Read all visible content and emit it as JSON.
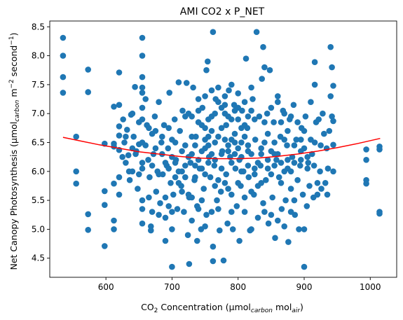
{
  "chart_data": {
    "type": "scatter",
    "title": "AMI CO2 x P_NET",
    "xlabel": {
      "main": "CO",
      "sub2": "2",
      "rest": " Concentration (µmol",
      "sub_carbon": "carbon",
      "mid": " mol",
      "sub_air": "air",
      "end": ")"
    },
    "ylabel": {
      "main": "Net Canopy Photosynthesis (µmol",
      "sub_carbon": "carbon",
      "mid": " m",
      "sup1": "−2",
      "mid2": " second",
      "sup2": "−1",
      "end": ")"
    },
    "xlim": [
      515,
      1040
    ],
    "ylim": [
      4.17,
      8.6
    ],
    "xticks": [
      600,
      700,
      800,
      900,
      1000
    ],
    "yticks": [
      4.5,
      5.0,
      5.5,
      6.0,
      6.5,
      7.0,
      7.5,
      8.0,
      8.5
    ],
    "colors": {
      "points": "#1f77b4",
      "fit": "#ff0000"
    },
    "fit_line": {
      "name": "",
      "x": [
        535,
        560,
        590,
        620,
        650,
        680,
        710,
        740,
        770,
        800,
        830,
        860,
        890,
        920,
        950,
        980,
        1015
      ],
      "y": [
        6.59,
        6.53,
        6.46,
        6.4,
        6.34,
        6.3,
        6.26,
        6.23,
        6.22,
        6.22,
        6.23,
        6.26,
        6.3,
        6.35,
        6.41,
        6.48,
        6.57
      ]
    },
    "points": [
      [
        535,
        8.31
      ],
      [
        535,
        8.0
      ],
      [
        535,
        7.63
      ],
      [
        535,
        7.36
      ],
      [
        555,
        6.6
      ],
      [
        555,
        6.0
      ],
      [
        555,
        5.79
      ],
      [
        573,
        7.76
      ],
      [
        573,
        7.37
      ],
      [
        573,
        5.26
      ],
      [
        573,
        4.99
      ],
      [
        598,
        6.48
      ],
      [
        598,
        5.66
      ],
      [
        598,
        5.42
      ],
      [
        598,
        4.71
      ],
      [
        612,
        7.12
      ],
      [
        612,
        6.48
      ],
      [
        612,
        6.43
      ],
      [
        612,
        5.79
      ],
      [
        612,
        5.15
      ],
      [
        612,
        5.0
      ],
      [
        620,
        7.71
      ],
      [
        620,
        7.15
      ],
      [
        620,
        6.78
      ],
      [
        620,
        6.62
      ],
      [
        620,
        6.37
      ],
      [
        620,
        5.9
      ],
      [
        620,
        5.6
      ],
      [
        626,
        6.9
      ],
      [
        628,
        6.5
      ],
      [
        630,
        6.15
      ],
      [
        632,
        6.72
      ],
      [
        634,
        6.28
      ],
      [
        636,
        5.85
      ],
      [
        638,
        6.98
      ],
      [
        640,
        7.0
      ],
      [
        640,
        6.0
      ],
      [
        642,
        6.6
      ],
      [
        644,
        7.46
      ],
      [
        646,
        6.35
      ],
      [
        648,
        5.7
      ],
      [
        650,
        6.47
      ],
      [
        650,
        6.85
      ],
      [
        655,
        8.31
      ],
      [
        655,
        8.0
      ],
      [
        655,
        7.63
      ],
      [
        655,
        7.45
      ],
      [
        655,
        7.36
      ],
      [
        655,
        7.1
      ],
      [
        655,
        6.9
      ],
      [
        655,
        6.5
      ],
      [
        655,
        6.05
      ],
      [
        655,
        5.5
      ],
      [
        655,
        5.35
      ],
      [
        655,
        5.1
      ],
      [
        660,
        7.25
      ],
      [
        662,
        6.8
      ],
      [
        664,
        6.2
      ],
      [
        666,
        5.9
      ],
      [
        668,
        5.05
      ],
      [
        668,
        4.98
      ],
      [
        670,
        6.65
      ],
      [
        672,
        6.3
      ],
      [
        674,
        6.95
      ],
      [
        676,
        5.65
      ],
      [
        678,
        6.0
      ],
      [
        680,
        7.2
      ],
      [
        682,
        5.45
      ],
      [
        684,
        6.5
      ],
      [
        686,
        5.95
      ],
      [
        688,
        6.8
      ],
      [
        690,
        4.8
      ],
      [
        690,
        5.2
      ],
      [
        692,
        6.1
      ],
      [
        694,
        6.4
      ],
      [
        696,
        7.36
      ],
      [
        698,
        5.8
      ],
      [
        700,
        4.35
      ],
      [
        700,
        5.0
      ],
      [
        700,
        6.55
      ],
      [
        702,
        5.6
      ],
      [
        704,
        6.9
      ],
      [
        706,
        6.2
      ],
      [
        708,
        5.35
      ],
      [
        710,
        7.54
      ],
      [
        710,
        6.0
      ],
      [
        712,
        6.7
      ],
      [
        714,
        5.75
      ],
      [
        716,
        7.05
      ],
      [
        718,
        5.3
      ],
      [
        720,
        6.45
      ],
      [
        720,
        6.95
      ],
      [
        722,
        7.53
      ],
      [
        724,
        4.9
      ],
      [
        726,
        5.55
      ],
      [
        726,
        4.4
      ],
      [
        728,
        6.15
      ],
      [
        730,
        6.3
      ],
      [
        730,
        5.15
      ],
      [
        732,
        7.45
      ],
      [
        734,
        5.85
      ],
      [
        736,
        6.6
      ],
      [
        738,
        4.8
      ],
      [
        738,
        5.4
      ],
      [
        740,
        6.85
      ],
      [
        742,
        6.05
      ],
      [
        744,
        5.0
      ],
      [
        746,
        7.1
      ],
      [
        748,
        5.7
      ],
      [
        750,
        6.4
      ],
      [
        750,
        6.75
      ],
      [
        752,
        7.75
      ],
      [
        752,
        5.25
      ],
      [
        754,
        7.9
      ],
      [
        756,
        6.25
      ],
      [
        758,
        5.9
      ],
      [
        760,
        6.95
      ],
      [
        762,
        8.41
      ],
      [
        762,
        4.45
      ],
      [
        762,
        4.7
      ],
      [
        764,
        6.1
      ],
      [
        766,
        7.25
      ],
      [
        768,
        5.5
      ],
      [
        770,
        6.6
      ],
      [
        772,
        4.98
      ],
      [
        774,
        5.65
      ],
      [
        776,
        6.35
      ],
      [
        778,
        4.46
      ],
      [
        780,
        7.0
      ],
      [
        782,
        6.8
      ],
      [
        782,
        5.95
      ],
      [
        784,
        5.1
      ],
      [
        786,
        7.4
      ],
      [
        788,
        6.25
      ],
      [
        790,
        6.55
      ],
      [
        790,
        5.6
      ],
      [
        792,
        5.0
      ],
      [
        794,
        7.15
      ],
      [
        796,
        6.05
      ],
      [
        798,
        5.4
      ],
      [
        800,
        6.4
      ],
      [
        800,
        6.9
      ],
      [
        802,
        4.8
      ],
      [
        802,
        6.2
      ],
      [
        804,
        5.75
      ],
      [
        806,
        7.05
      ],
      [
        808,
        6.0
      ],
      [
        810,
        5.3
      ],
      [
        812,
        7.95
      ],
      [
        814,
        6.75
      ],
      [
        816,
        5.9
      ],
      [
        818,
        4.98
      ],
      [
        820,
        6.3
      ],
      [
        822,
        7.25
      ],
      [
        824,
        5.6
      ],
      [
        826,
        6.55
      ],
      [
        828,
        8.41
      ],
      [
        830,
        5.2
      ],
      [
        830,
        5.75
      ],
      [
        832,
        6.95
      ],
      [
        834,
        6.1
      ],
      [
        836,
        7.6
      ],
      [
        838,
        8.15
      ],
      [
        838,
        5.45
      ],
      [
        840,
        7.8
      ],
      [
        840,
        6.5
      ],
      [
        842,
        5.85
      ],
      [
        844,
        7.0
      ],
      [
        846,
        5.1
      ],
      [
        848,
        7.75
      ],
      [
        850,
        6.35
      ],
      [
        852,
        5.55
      ],
      [
        854,
        6.85
      ],
      [
        856,
        4.85
      ],
      [
        858,
        6.2
      ],
      [
        860,
        7.3
      ],
      [
        862,
        5.9
      ],
      [
        864,
        6.6
      ],
      [
        866,
        5.35
      ],
      [
        868,
        7.05
      ],
      [
        870,
        6.0
      ],
      [
        872,
        5.5
      ],
      [
        874,
        6.45
      ],
      [
        876,
        4.78
      ],
      [
        878,
        6.9
      ],
      [
        880,
        5.7
      ],
      [
        882,
        6.25
      ],
      [
        884,
        7.15
      ],
      [
        886,
        5.25
      ],
      [
        888,
        6.55
      ],
      [
        890,
        5.85
      ],
      [
        892,
        5.0
      ],
      [
        894,
        6.1
      ],
      [
        896,
        6.75
      ],
      [
        898,
        5.6
      ],
      [
        900,
        4.35
      ],
      [
        900,
        5.0
      ],
      [
        900,
        6.4
      ],
      [
        902,
        6.95
      ],
      [
        904,
        5.4
      ],
      [
        906,
        6.15
      ],
      [
        908,
        5.75
      ],
      [
        910,
        7.2
      ],
      [
        912,
        6.3
      ],
      [
        914,
        5.55
      ],
      [
        916,
        7.89
      ],
      [
        916,
        7.5
      ],
      [
        916,
        6.5
      ],
      [
        918,
        6.85
      ],
      [
        920,
        5.8
      ],
      [
        920,
        5.6
      ],
      [
        922,
        6.9
      ],
      [
        924,
        6.0
      ],
      [
        926,
        5.7
      ],
      [
        928,
        7.0
      ],
      [
        930,
        6.65
      ],
      [
        932,
        5.8
      ],
      [
        934,
        6.4
      ],
      [
        936,
        6.05
      ],
      [
        938,
        6.7
      ],
      [
        940,
        8.15
      ],
      [
        940,
        7.3
      ],
      [
        942,
        7.8
      ],
      [
        942,
        6.95
      ],
      [
        944,
        7.48
      ],
      [
        944,
        6.87
      ],
      [
        944,
        6.46
      ],
      [
        944,
        6.0
      ],
      [
        994,
        6.38
      ],
      [
        994,
        6.2
      ],
      [
        994,
        5.85
      ],
      [
        994,
        5.79
      ],
      [
        1014,
        6.43
      ],
      [
        1014,
        6.38
      ],
      [
        1014,
        5.3
      ],
      [
        1014,
        5.27
      ],
      [
        685,
        6.6
      ],
      [
        695,
        6.75
      ],
      [
        705,
        5.9
      ],
      [
        715,
        6.35
      ],
      [
        725,
        7.0
      ],
      [
        735,
        6.45
      ],
      [
        745,
        5.5
      ],
      [
        755,
        6.9
      ],
      [
        765,
        6.5
      ],
      [
        775,
        7.1
      ],
      [
        785,
        6.45
      ],
      [
        795,
        6.65
      ],
      [
        805,
        6.5
      ],
      [
        815,
        6.1
      ],
      [
        825,
        6.9
      ],
      [
        835,
        6.3
      ],
      [
        845,
        6.65
      ],
      [
        855,
        6.1
      ],
      [
        865,
        6.85
      ],
      [
        875,
        6.2
      ],
      [
        885,
        6.45
      ],
      [
        895,
        6.2
      ],
      [
        720,
        6.1
      ],
      [
        730,
        6.6
      ],
      [
        740,
        6.2
      ],
      [
        750,
        5.95
      ],
      [
        760,
        6.3
      ],
      [
        770,
        5.85
      ],
      [
        780,
        6.55
      ],
      [
        790,
        6.15
      ],
      [
        800,
        5.8
      ],
      [
        810,
        6.6
      ],
      [
        820,
        5.65
      ],
      [
        830,
        6.15
      ],
      [
        840,
        6.85
      ],
      [
        850,
        5.95
      ],
      [
        860,
        6.3
      ],
      [
        870,
        6.55
      ],
      [
        880,
        6.0
      ],
      [
        760,
        6.7
      ],
      [
        770,
        7.2
      ],
      [
        780,
        7.15
      ],
      [
        790,
        6.9
      ],
      [
        800,
        7.1
      ],
      [
        810,
        6.8
      ],
      [
        820,
        7.05
      ],
      [
        740,
        7.05
      ],
      [
        750,
        6.55
      ],
      [
        730,
        6.95
      ],
      [
        720,
        5.9
      ],
      [
        710,
        5.8
      ],
      [
        700,
        6.25
      ],
      [
        690,
        6.15
      ],
      [
        680,
        5.95
      ],
      [
        670,
        6.1
      ],
      [
        660,
        6.45
      ],
      [
        640,
        6.4
      ],
      [
        630,
        6.6
      ],
      [
        650,
        5.95
      ],
      [
        665,
        5.55
      ],
      [
        675,
        6.7
      ],
      [
        695,
        5.4
      ],
      [
        705,
        6.5
      ],
      [
        715,
        5.65
      ],
      [
        725,
        5.6
      ],
      [
        735,
        5.9
      ],
      [
        745,
        6.35
      ],
      [
        755,
        6.15
      ],
      [
        765,
        5.75
      ],
      [
        775,
        6.3
      ],
      [
        785,
        5.7
      ],
      [
        795,
        6.3
      ],
      [
        805,
        6.0
      ],
      [
        815,
        6.45
      ],
      [
        825,
        5.95
      ],
      [
        835,
        5.8
      ],
      [
        845,
        6.2
      ],
      [
        855,
        6.5
      ],
      [
        865,
        5.8
      ],
      [
        875,
        6.7
      ],
      [
        885,
        5.5
      ],
      [
        895,
        6.55
      ],
      [
        905,
        6.25
      ],
      [
        915,
        6.1
      ],
      [
        925,
        6.45
      ],
      [
        935,
        5.6
      ],
      [
        760,
        5.3
      ],
      [
        770,
        5.35
      ],
      [
        780,
        5.8
      ],
      [
        790,
        5.3
      ],
      [
        810,
        5.55
      ],
      [
        820,
        5.0
      ],
      [
        840,
        5.3
      ],
      [
        850,
        5.25
      ],
      [
        860,
        5.15
      ],
      [
        870,
        5.05
      ],
      [
        880,
        5.3
      ],
      [
        750,
        5.05
      ],
      [
        740,
        5.35
      ],
      [
        730,
        5.55
      ],
      [
        700,
        5.3
      ],
      [
        690,
        5.55
      ],
      [
        680,
        5.25
      ],
      [
        670,
        5.3
      ],
      [
        760,
        7.4
      ],
      [
        780,
        7.3
      ],
      [
        800,
        7.35
      ],
      [
        770,
        7.45
      ],
      [
        790,
        7.5
      ],
      [
        810,
        7.2
      ],
      [
        820,
        7.45
      ],
      [
        750,
        7.3
      ],
      [
        740,
        7.25
      ],
      [
        850,
        7.1
      ],
      [
        860,
        7.2
      ],
      [
        870,
        7.0
      ],
      [
        880,
        6.95
      ],
      [
        890,
        6.85
      ],
      [
        900,
        6.7
      ],
      [
        910,
        6.55
      ],
      [
        775,
        6.75
      ],
      [
        785,
        6.95
      ],
      [
        795,
        7.05
      ],
      [
        765,
        7.0
      ],
      [
        755,
        6.6
      ],
      [
        745,
        6.8
      ],
      [
        805,
        6.75
      ],
      [
        815,
        6.95
      ],
      [
        625,
        6.25
      ],
      [
        635,
        6.0
      ],
      [
        645,
        6.3
      ],
      [
        655,
        6.15
      ],
      [
        665,
        6.75
      ],
      [
        675,
        6.4
      ],
      [
        685,
        6.3
      ],
      [
        695,
        6.05
      ],
      [
        705,
        6.15
      ],
      [
        715,
        6.0
      ],
      [
        725,
        6.25
      ],
      [
        735,
        6.1
      ],
      [
        745,
        6.05
      ],
      [
        755,
        6.45
      ],
      [
        765,
        6.2
      ],
      [
        775,
        6.05
      ],
      [
        785,
        6.35
      ],
      [
        795,
        6.5
      ],
      [
        805,
        6.25
      ],
      [
        815,
        6.35
      ],
      [
        825,
        6.05
      ],
      [
        835,
        6.4
      ],
      [
        845,
        6.05
      ],
      [
        855,
        6.3
      ],
      [
        865,
        6.15
      ],
      [
        875,
        6.05
      ],
      [
        885,
        6.15
      ],
      [
        895,
        6.35
      ],
      [
        905,
        6.05
      ]
    ]
  }
}
